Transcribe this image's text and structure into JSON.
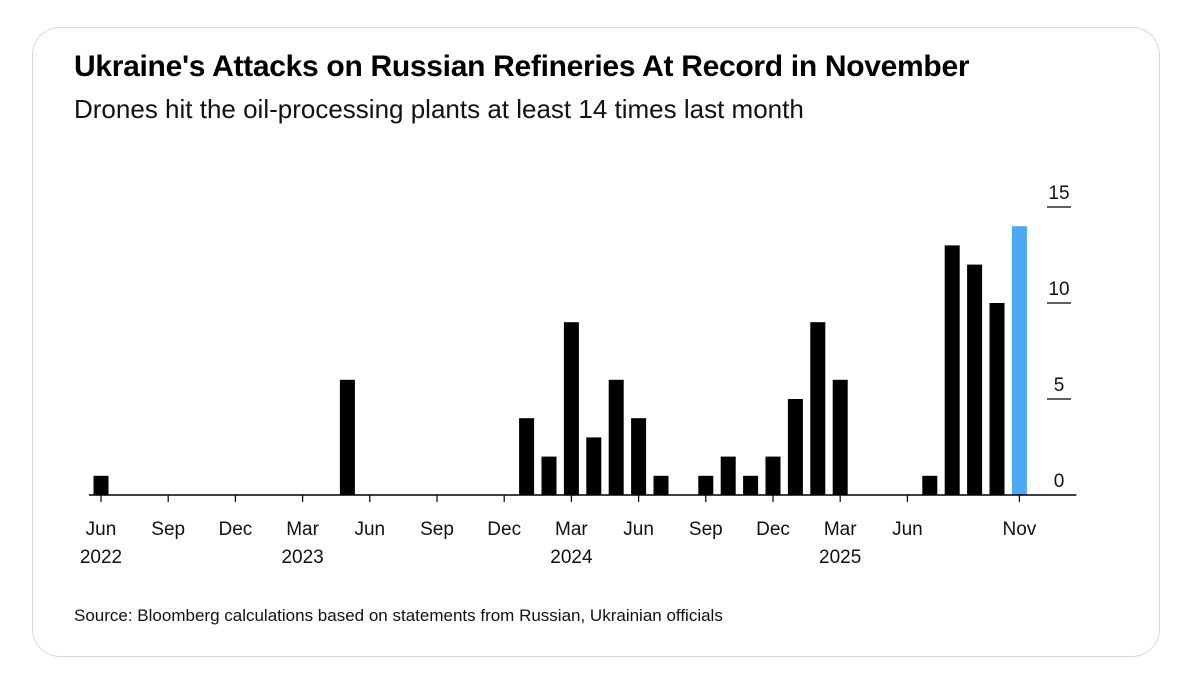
{
  "header": {
    "title": "Ukraine's Attacks on Russian Refineries At Record in November",
    "subtitle": "Drones hit the oil-processing plants at least 14 times last month"
  },
  "footer": {
    "source": "Source: Bloomberg calculations based on statements from Russian, Ukrainian officials"
  },
  "colors": {
    "bar": "#000000",
    "highlight": "#4da8f5",
    "axis": "#000000"
  },
  "chart_data": {
    "type": "bar",
    "title": "Ukraine's Attacks on Russian Refineries At Record in November",
    "subtitle": "Drones hit the oil-processing plants at least 14 times last month",
    "xlabel": "",
    "ylabel": "",
    "ylim": [
      0,
      15
    ],
    "yticks": [
      0,
      5,
      10,
      15
    ],
    "y_axis_position": "right",
    "grid": false,
    "legend": "none",
    "x_start": "2022-06",
    "categories": [
      "2022-06",
      "2022-07",
      "2022-08",
      "2022-09",
      "2022-10",
      "2022-11",
      "2022-12",
      "2023-01",
      "2023-02",
      "2023-03",
      "2023-04",
      "2023-05",
      "2023-06",
      "2023-07",
      "2023-08",
      "2023-09",
      "2023-10",
      "2023-11",
      "2023-12",
      "2024-01",
      "2024-02",
      "2024-03",
      "2024-04",
      "2024-05",
      "2024-06",
      "2024-07",
      "2024-08",
      "2024-09",
      "2024-10",
      "2024-11",
      "2024-12",
      "2025-01",
      "2025-02",
      "2025-03",
      "2025-04",
      "2025-05",
      "2025-06",
      "2025-07",
      "2025-08",
      "2025-09",
      "2025-10",
      "2025-11"
    ],
    "values": [
      1,
      0,
      0,
      0,
      0,
      0,
      0,
      0,
      0,
      0,
      0,
      6,
      0,
      0,
      0,
      0,
      0,
      0,
      0,
      4,
      2,
      9,
      3,
      6,
      4,
      1,
      0,
      1,
      2,
      1,
      2,
      5,
      9,
      6,
      0,
      0,
      0,
      1,
      13,
      12,
      10,
      14
    ],
    "highlight_category": "2025-11",
    "x_tick_labels": [
      {
        "category": "2022-06",
        "month": "Jun",
        "year": "2022"
      },
      {
        "category": "2022-09",
        "month": "Sep",
        "year": ""
      },
      {
        "category": "2022-12",
        "month": "Dec",
        "year": ""
      },
      {
        "category": "2023-03",
        "month": "Mar",
        "year": "2023"
      },
      {
        "category": "2023-06",
        "month": "Jun",
        "year": ""
      },
      {
        "category": "2023-09",
        "month": "Sep",
        "year": ""
      },
      {
        "category": "2023-12",
        "month": "Dec",
        "year": ""
      },
      {
        "category": "2024-03",
        "month": "Mar",
        "year": "2024"
      },
      {
        "category": "2024-06",
        "month": "Jun",
        "year": ""
      },
      {
        "category": "2024-09",
        "month": "Sep",
        "year": ""
      },
      {
        "category": "2024-12",
        "month": "Dec",
        "year": ""
      },
      {
        "category": "2025-03",
        "month": "Mar",
        "year": "2025"
      },
      {
        "category": "2025-06",
        "month": "Jun",
        "year": ""
      },
      {
        "category": "2025-11",
        "month": "Nov",
        "year": ""
      }
    ]
  }
}
